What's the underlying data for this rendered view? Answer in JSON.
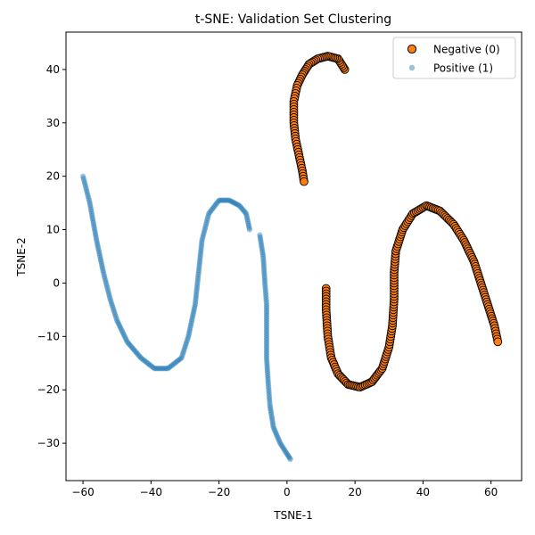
{
  "chart_data": {
    "type": "scatter",
    "title": "t-SNE: Validation Set Clustering",
    "xlabel": "TSNE-1",
    "ylabel": "TSNE-2",
    "xlim": [
      -65,
      69
    ],
    "ylim": [
      -37,
      47
    ],
    "xticks": [
      -60,
      -40,
      -20,
      0,
      20,
      40,
      60
    ],
    "yticks": [
      -30,
      -20,
      -10,
      0,
      10,
      20,
      30,
      40
    ],
    "x_tick_labels": [
      "−60",
      "−40",
      "−20",
      "0",
      "20",
      "40",
      "60"
    ],
    "y_tick_labels": [
      "−30",
      "−20",
      "−10",
      "0",
      "10",
      "20",
      "30",
      "40"
    ],
    "grid": false,
    "legend_position": "top-right",
    "series": [
      {
        "name": "Negative (0)",
        "color": "#ff7f0e",
        "edge_color": "#000000",
        "marker": "circle-large",
        "curves": [
          [
            [
              17,
              40
            ],
            [
              15,
              42
            ],
            [
              12,
              42.5
            ],
            [
              9,
              42
            ],
            [
              6.5,
              41
            ],
            [
              4.5,
              39
            ],
            [
              3,
              37
            ],
            [
              2,
              34
            ],
            [
              2,
              30
            ],
            [
              2.5,
              27
            ],
            [
              3.5,
              24
            ],
            [
              4.5,
              21
            ],
            [
              5,
              19
            ]
          ],
          [
            [
              11.5,
              -1
            ],
            [
              11.5,
              -5
            ],
            [
              12,
              -10
            ],
            [
              13,
              -14
            ],
            [
              15,
              -17
            ],
            [
              18,
              -19
            ],
            [
              21.5,
              -19.5
            ],
            [
              25,
              -18.5
            ],
            [
              28,
              -16
            ],
            [
              30,
              -12
            ],
            [
              31,
              -8
            ],
            [
              31.5,
              -3
            ],
            [
              31.5,
              2
            ],
            [
              32,
              6
            ],
            [
              34,
              10
            ],
            [
              37,
              13
            ],
            [
              41,
              14.5
            ],
            [
              45,
              13.5
            ],
            [
              49,
              11
            ],
            [
              52,
              8
            ],
            [
              55,
              4
            ],
            [
              57,
              0
            ],
            [
              59,
              -4
            ],
            [
              61,
              -8
            ],
            [
              62,
              -11
            ]
          ]
        ]
      },
      {
        "name": "Positive (1)",
        "color": "#1f77b4",
        "edge_color": "none",
        "marker": "circle-small",
        "curves": [
          [
            [
              -60,
              20
            ],
            [
              -58,
              15
            ],
            [
              -56,
              8
            ],
            [
              -54,
              2
            ],
            [
              -52,
              -3
            ],
            [
              -50,
              -7
            ],
            [
              -47,
              -11
            ],
            [
              -43,
              -14
            ],
            [
              -39,
              -16
            ],
            [
              -35,
              -16
            ],
            [
              -31,
              -14
            ],
            [
              -29,
              -10
            ],
            [
              -27,
              -4
            ],
            [
              -26,
              2
            ],
            [
              -25,
              8
            ],
            [
              -23,
              13
            ],
            [
              -20,
              15.5
            ],
            [
              -17,
              15.5
            ],
            [
              -14,
              14.5
            ],
            [
              -12,
              13
            ],
            [
              -11,
              10
            ]
          ],
          [
            [
              -8,
              9
            ],
            [
              -7,
              5
            ],
            [
              -6.5,
              0
            ],
            [
              -6,
              -4
            ],
            [
              -6,
              -9
            ],
            [
              -6,
              -14
            ],
            [
              -5.5,
              -19
            ],
            [
              -5,
              -23
            ],
            [
              -4,
              -27
            ],
            [
              -2,
              -30
            ],
            [
              0,
              -32
            ],
            [
              1,
              -33
            ]
          ]
        ]
      }
    ]
  }
}
